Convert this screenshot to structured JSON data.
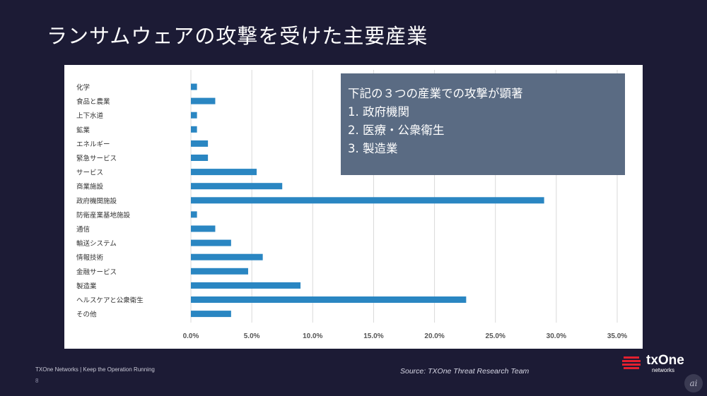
{
  "slide": {
    "title": "ランサムウェアの攻撃を受けた主要産業",
    "footer": "TXOne Networks  |  Keep the Operation Running",
    "page_number": "8",
    "source": "Source: TXOne Threat Research Team",
    "logo_text": "txOne",
    "logo_sub": "networks",
    "watermark": "ai"
  },
  "note": {
    "heading": "下記の３つの産業での攻撃が顕著",
    "items": [
      "1. 政府機関",
      "2. 医療・公衆衛生",
      "3. 製造業"
    ]
  },
  "colors": {
    "bar": "#2a86c2",
    "grid": "#d9d9d9",
    "background": "#1c1b35",
    "note_box": "#5a6b83"
  },
  "chart_data": {
    "type": "bar",
    "orientation": "horizontal",
    "categories": [
      "化学",
      "食品と農業",
      "上下水道",
      "鉱業",
      "エネルギー",
      "緊急サービス",
      "サービス",
      "商業施設",
      "政府機関施設",
      "防衛産業基地施設",
      "通信",
      "輸送システム",
      "情報技術",
      "金融サービス",
      "製造業",
      "ヘルスケアと公衆衛生",
      "その他"
    ],
    "values": [
      0.5,
      2.0,
      0.5,
      0.5,
      1.4,
      1.4,
      5.4,
      7.5,
      29.0,
      0.5,
      2.0,
      3.3,
      5.9,
      4.7,
      9.0,
      22.6,
      3.3
    ],
    "xlim": [
      0,
      35
    ],
    "xticks": [
      "0.0%",
      "5.0%",
      "10.0%",
      "15.0%",
      "20.0%",
      "25.0%",
      "30.0%",
      "35.0%"
    ],
    "grid": true,
    "xlabel": "",
    "ylabel": ""
  }
}
